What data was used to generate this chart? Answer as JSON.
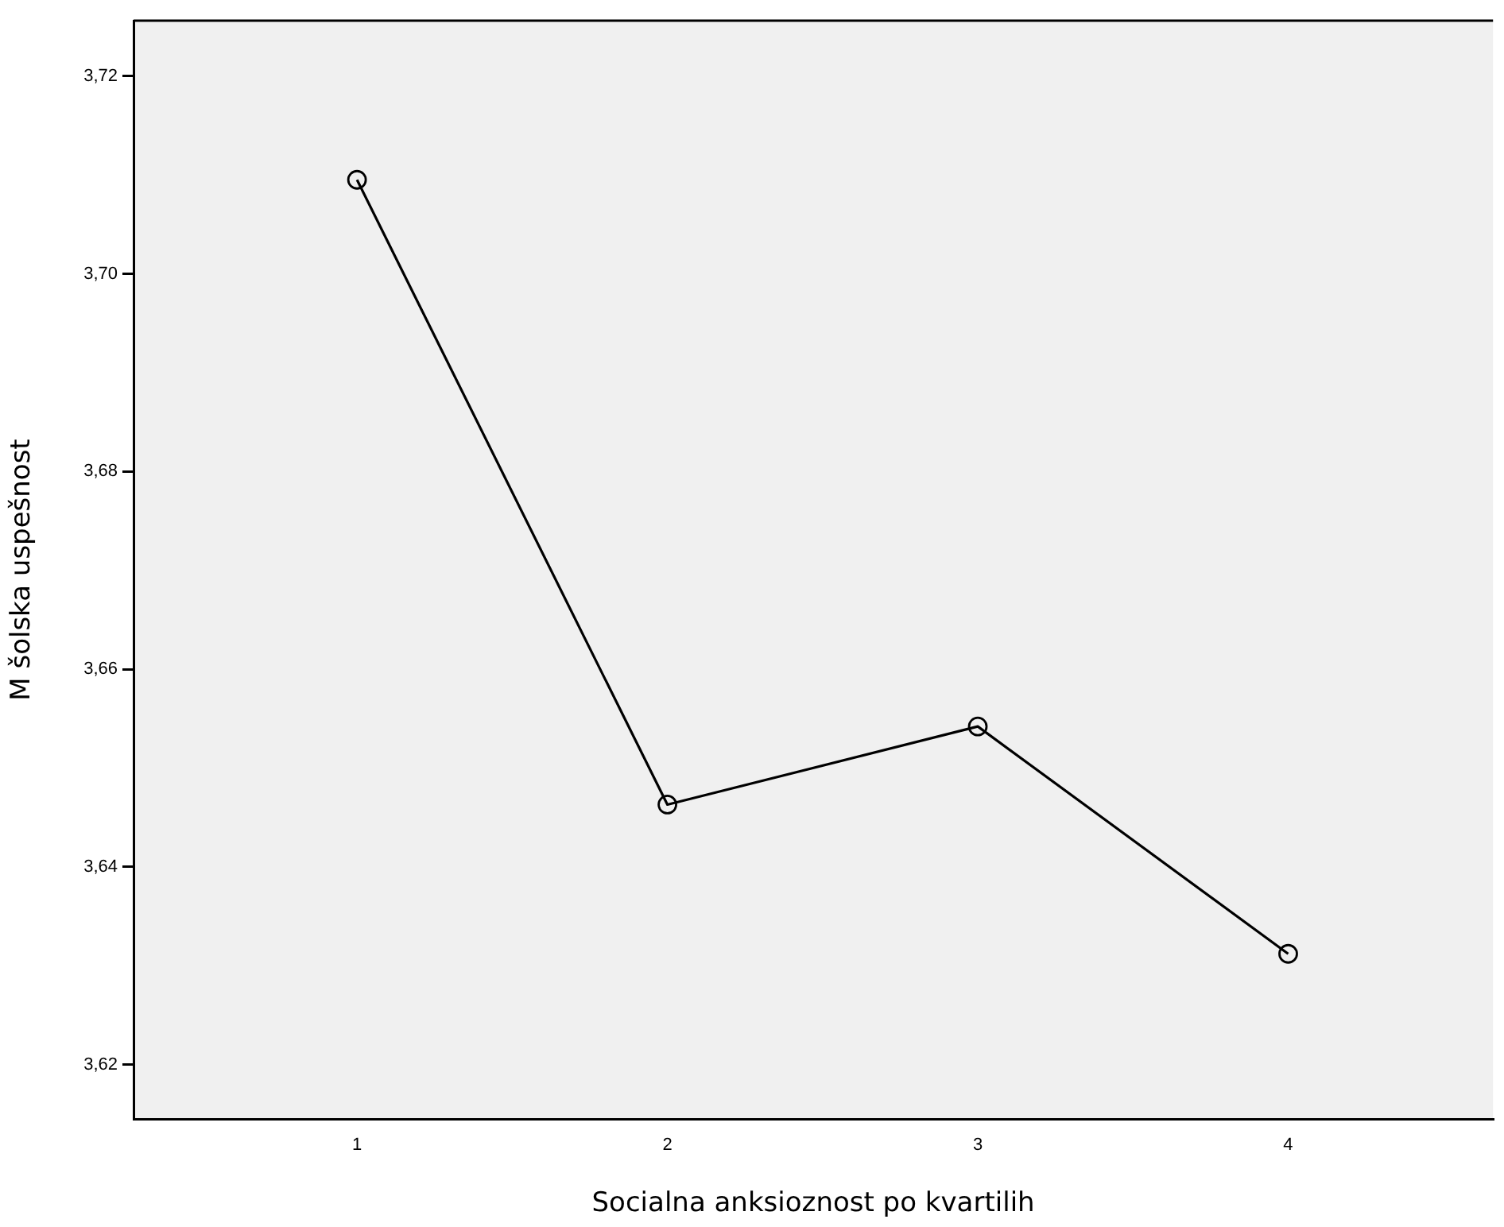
{
  "chart_data": {
    "type": "line",
    "xlabel": "Socialna anksioznost po kvartilih",
    "ylabel": "M šolska uspešnost",
    "categories": [
      "1",
      "2",
      "3",
      "4"
    ],
    "series": [
      {
        "color": "#000000",
        "values": [
          3.7095,
          3.6463,
          3.6542,
          3.6312
        ]
      }
    ],
    "ylim": [
      3.6145,
      3.7256
    ],
    "yticks": [
      {
        "value": 3.62,
        "label": "3,62"
      },
      {
        "value": 3.64,
        "label": "3,64"
      },
      {
        "value": 3.66,
        "label": "3,66"
      },
      {
        "value": 3.68,
        "label": "3,68"
      },
      {
        "value": 3.7,
        "label": "3,70"
      },
      {
        "value": 3.72,
        "label": "3,72"
      }
    ],
    "marker": "circle",
    "line_style": "solid",
    "legend": false
  }
}
